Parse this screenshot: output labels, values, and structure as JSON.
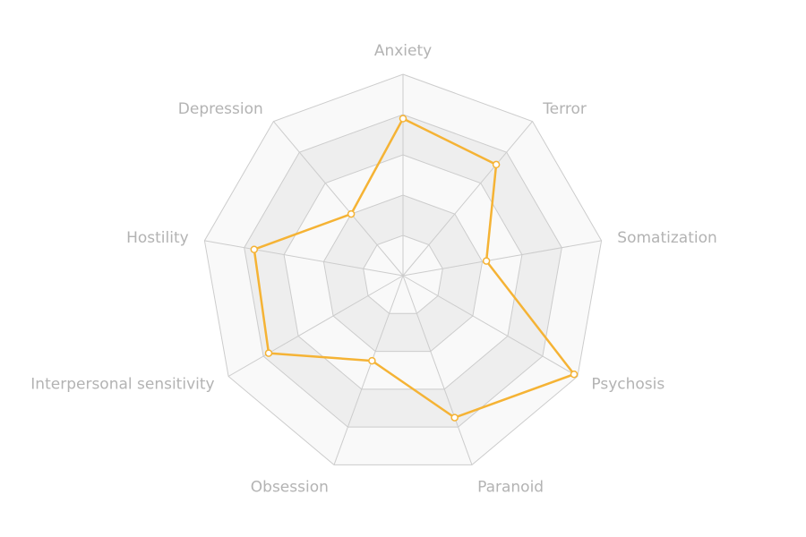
{
  "chart_data": {
    "type": "radar",
    "indicators": [
      "Anxiety",
      "Terror",
      "Somatization",
      "Psychosis",
      "Paranoid",
      "Obsession",
      "Interpersonal sensitivity",
      "Hostility",
      "Depression"
    ],
    "max": 100,
    "levels": 5,
    "series": [
      {
        "values": [
          78,
          72,
          42,
          98,
          75,
          45,
          77,
          75,
          40
        ]
      }
    ],
    "colors": {
      "line": "#f5b335",
      "axis": "#cccccc",
      "band_light": "#f9f9f9",
      "band_dark": "#eeeeee",
      "label": "#b3b3b3"
    },
    "legend": "none"
  }
}
